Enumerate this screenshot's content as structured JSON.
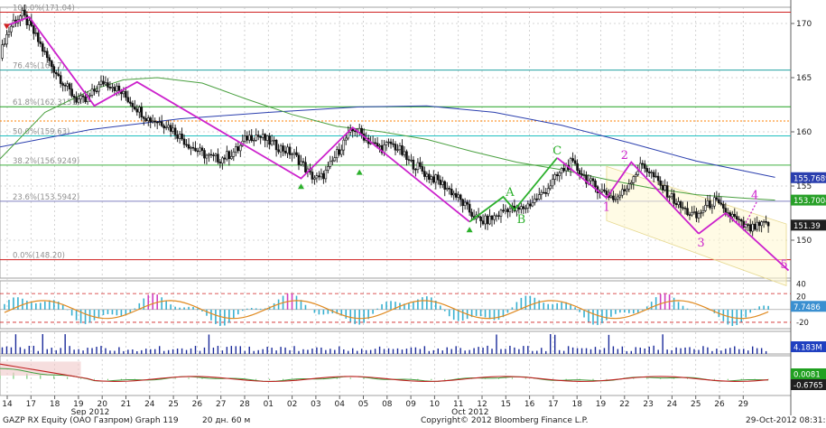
{
  "chart_data": {
    "type": "candlestick",
    "main_panel": {
      "ylim": [
        146.5,
        171.5
      ],
      "y_ticks": [
        150,
        155,
        160,
        165,
        170
      ],
      "price_points": [
        [
          0,
          166.8
        ],
        [
          2,
          168.5
        ],
        [
          6,
          170.2
        ],
        [
          10,
          170.8
        ],
        [
          14,
          169.5
        ],
        [
          18,
          168.0
        ],
        [
          22,
          166.4
        ],
        [
          26,
          165.2
        ],
        [
          30,
          164.0
        ],
        [
          34,
          163.0
        ],
        [
          38,
          162.8
        ],
        [
          42,
          163.8
        ],
        [
          46,
          164.6
        ],
        [
          50,
          164.3
        ],
        [
          54,
          163.6
        ],
        [
          58,
          162.8
        ],
        [
          62,
          162.0
        ],
        [
          66,
          161.2
        ],
        [
          70,
          161.0
        ],
        [
          74,
          160.7
        ],
        [
          78,
          160.0
        ],
        [
          82,
          159.2
        ],
        [
          86,
          158.5
        ],
        [
          90,
          158.0
        ],
        [
          94,
          157.6
        ],
        [
          98,
          157.5
        ],
        [
          102,
          157.9
        ],
        [
          106,
          158.4
        ],
        [
          110,
          159.5
        ],
        [
          114,
          159.7
        ],
        [
          118,
          159.3
        ],
        [
          122,
          158.8
        ],
        [
          126,
          158.4
        ],
        [
          130,
          158.0
        ],
        [
          134,
          157.2
        ],
        [
          138,
          156.0
        ],
        [
          142,
          155.6
        ],
        [
          146,
          156.5
        ],
        [
          150,
          158.0
        ],
        [
          154,
          159.4
        ],
        [
          158,
          160.3
        ],
        [
          162,
          159.6
        ],
        [
          166,
          158.8
        ],
        [
          170,
          158.5
        ],
        [
          174,
          158.9
        ],
        [
          178,
          158.3
        ],
        [
          182,
          157.2
        ],
        [
          186,
          156.8
        ],
        [
          190,
          156.0
        ],
        [
          194,
          155.6
        ],
        [
          198,
          155.0
        ],
        [
          202,
          154.3
        ],
        [
          206,
          153.4
        ],
        [
          210,
          152.4
        ],
        [
          214,
          151.7
        ],
        [
          218,
          151.9
        ],
        [
          222,
          152.4
        ],
        [
          226,
          153.0
        ],
        [
          230,
          152.7
        ],
        [
          234,
          153.1
        ],
        [
          238,
          153.7
        ],
        [
          242,
          154.4
        ],
        [
          246,
          155.4
        ],
        [
          250,
          156.4
        ],
        [
          254,
          157.1
        ],
        [
          258,
          156.4
        ],
        [
          262,
          155.4
        ],
        [
          266,
          154.8
        ],
        [
          270,
          154.3
        ],
        [
          274,
          153.8
        ],
        [
          278,
          154.6
        ],
        [
          282,
          156.0
        ],
        [
          286,
          157.0
        ],
        [
          290,
          156.1
        ],
        [
          294,
          155.0
        ],
        [
          298,
          154.2
        ],
        [
          302,
          153.2
        ],
        [
          306,
          152.6
        ],
        [
          310,
          152.1
        ],
        [
          314,
          153.1
        ],
        [
          318,
          153.6
        ],
        [
          322,
          152.7
        ],
        [
          326,
          152.2
        ],
        [
          330,
          151.4
        ],
        [
          334,
          151.0
        ],
        [
          338,
          151.3
        ],
        [
          342,
          151.5
        ]
      ],
      "moving_averages": [
        {
          "color": "#2b3fae",
          "last_value": "155.7689",
          "points": [
            [
              0,
              158.6
            ],
            [
              40,
              160.2
            ],
            [
              80,
              161.2
            ],
            [
              120,
              161.8
            ],
            [
              160,
              162.3
            ],
            [
              190,
              162.4
            ],
            [
              220,
              161.8
            ],
            [
              250,
              160.6
            ],
            [
              280,
              159.0
            ],
            [
              310,
              157.3
            ],
            [
              345,
              155.8
            ]
          ]
        },
        {
          "color": "#4aa040",
          "last_value": "153.7004",
          "points": [
            [
              0,
              157.5
            ],
            [
              20,
              161.8
            ],
            [
              40,
              163.8
            ],
            [
              55,
              164.8
            ],
            [
              70,
              165.0
            ],
            [
              90,
              164.5
            ],
            [
              110,
              163.0
            ],
            [
              130,
              161.6
            ],
            [
              150,
              160.5
            ],
            [
              170,
              160.0
            ],
            [
              190,
              159.3
            ],
            [
              210,
              158.2
            ],
            [
              230,
              157.2
            ],
            [
              250,
              156.5
            ],
            [
              270,
              155.6
            ],
            [
              290,
              154.8
            ],
            [
              310,
              154.2
            ],
            [
              330,
              153.9
            ],
            [
              345,
              153.7
            ]
          ]
        }
      ],
      "wave_lines": [
        {
          "color": "#cc22cc",
          "points": [
            [
              3,
              169.8
            ],
            [
              13,
              170.6
            ],
            [
              42,
              162.4
            ],
            [
              61,
              164.6
            ],
            [
              134,
              155.7
            ],
            [
              157,
              160.4
            ],
            [
              209,
              151.7
            ]
          ]
        },
        {
          "color": "#2cb02c",
          "points": [
            [
              209,
              151.7
            ],
            [
              224,
              154.0
            ],
            [
              229,
              152.8
            ],
            [
              248,
              157.6
            ]
          ]
        },
        {
          "color": "#cc22cc",
          "points": [
            [
              248,
              157.6
            ],
            [
              270,
              153.9
            ],
            [
              281,
              157.2
            ],
            [
              311,
              150.6
            ]
          ]
        },
        {
          "color": "#cc22cc",
          "dashed": true,
          "points": [
            [
              311,
              150.6
            ],
            [
              323,
              152.5
            ],
            [
              331,
              151.2
            ],
            [
              337,
              153.6
            ]
          ]
        },
        {
          "color": "#cc22cc",
          "points": [
            [
              311,
              150.6
            ],
            [
              323,
              152.5
            ],
            [
              351,
              147.2
            ]
          ]
        }
      ],
      "wave_labels": [
        {
          "text": "A",
          "x": 227,
          "y": 154.1,
          "color": "#2cb02c"
        },
        {
          "text": "B",
          "x": 232,
          "y": 151.6,
          "color": "#2cb02c"
        },
        {
          "text": "C",
          "x": 248,
          "y": 157.9,
          "color": "#2cb02c"
        },
        {
          "text": "1",
          "x": 270,
          "y": 152.7,
          "color": "#cc22cc"
        },
        {
          "text": "2",
          "x": 278,
          "y": 157.5,
          "color": "#cc22cc"
        },
        {
          "text": "3",
          "x": 312,
          "y": 149.4,
          "color": "#cc22cc"
        },
        {
          "text": "4",
          "x": 336,
          "y": 153.8,
          "color": "#cc22cc"
        },
        {
          "text": "5",
          "x": 349,
          "y": 147.4,
          "color": "#cc22cc"
        }
      ],
      "fib_levels": [
        {
          "label": "100.0%(171.04)",
          "value": 171.04,
          "color": "#d02020"
        },
        {
          "label": "76.4%(165.7)",
          "value": 165.7,
          "color": "#20a0a0"
        },
        {
          "label": "61.8%(162.3151)",
          "value": 162.3151,
          "color": "#20a020"
        },
        {
          "label": "",
          "value": 161.0,
          "color": "#ff8000"
        },
        {
          "label": "50.0%(159.63)",
          "value": 159.63,
          "color": "#20c0c0"
        },
        {
          "label": "38.2%(156.9249)",
          "value": 156.9249,
          "color": "#40b040"
        },
        {
          "label": "23.6%(153.5942)",
          "value": 153.5942,
          "color": "#8080c0"
        },
        {
          "label": "0.0%(148.20)",
          "value": 148.2,
          "color": "#d02020"
        }
      ],
      "price_tags": [
        {
          "text": "155.7689",
          "value": 155.7689,
          "color": "#2b3fae"
        },
        {
          "text": "153.7004",
          "value": 153.7004,
          "color": "#28a028"
        },
        {
          "text": "151.39",
          "value": 151.39,
          "color": "#202020"
        }
      ]
    },
    "oscillator_panel": {
      "y_ticks": [
        "40",
        "20",
        "-20"
      ],
      "tags": [
        {
          "text": "7.7486",
          "color": "#3a8fd0"
        }
      ]
    },
    "volume_panel": {
      "tags": [
        {
          "text": "4.183M",
          "color": "#2040c0"
        }
      ]
    },
    "lower_panel": {
      "tags": [
        {
          "text": "0.0081",
          "color": "#20a020"
        },
        {
          "text": "-0.6765",
          "color": "#ffffff"
        }
      ]
    },
    "x_ticks": [
      "14",
      "17",
      "18",
      "19",
      "20",
      "21",
      "24",
      "25",
      "26",
      "27",
      "28",
      "01",
      "02",
      "03",
      "04",
      "05",
      "08",
      "09",
      "10",
      "11",
      "12",
      "15",
      "16",
      "17",
      "18",
      "19",
      "22",
      "23",
      "24",
      "25",
      "26",
      "29"
    ],
    "x_month_labels": [
      "Sep 2012",
      "Oct 2012"
    ]
  },
  "footer": {
    "instrument": "GAZP RX Equity (ОАО Газпром) Graph 119",
    "period": "20 дн. 60 м",
    "copyright": "Copyright© 2012 Bloomberg Finance L.P.",
    "timestamp": "29-Oct-2012 08:31:58"
  }
}
